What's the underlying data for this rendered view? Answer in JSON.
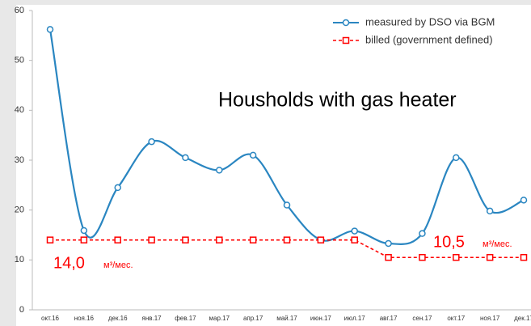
{
  "chart_data": {
    "type": "line",
    "categories": [
      "окт.16",
      "ноя.16",
      "дек.16",
      "янв.17",
      "фев.17",
      "мар.17",
      "апр.17",
      "май.17",
      "июн.17",
      "июл.17",
      "авг.17",
      "сен.17",
      "окт.17",
      "ноя.17",
      "дек.17"
    ],
    "series": [
      {
        "name": "measured by DSO via BGM",
        "color": "#2a86c1",
        "values": [
          56.2,
          15.9,
          24.5,
          33.7,
          30.5,
          28,
          31,
          21,
          14,
          15.8,
          13.3,
          15.3,
          30.5,
          19.8,
          22
        ]
      },
      {
        "name": "billed (government defined)",
        "color": "#ff0000",
        "values": [
          14,
          14,
          14,
          14,
          14,
          14,
          14,
          14,
          14,
          14,
          10.5,
          10.5,
          10.5,
          10.5,
          10.5
        ]
      }
    ],
    "ylim": [
      0,
      60
    ],
    "yticks": [
      0,
      10,
      20,
      30,
      40,
      50,
      60
    ],
    "annotations": {
      "title": "Housholds with gas heater",
      "left_value": "14,0",
      "left_unit": "м³/мес.",
      "right_value": "10,5",
      "right_unit": "м³/мес."
    }
  }
}
